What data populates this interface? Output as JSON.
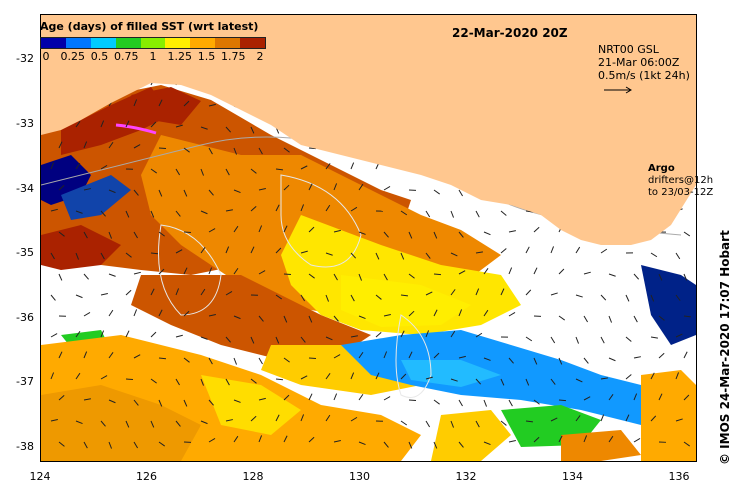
{
  "title": "22-Mar-2020 20Z",
  "legend": {
    "title": "Age (days) of filled SST (wrt latest)",
    "tick_labels": [
      "0",
      "0.25",
      "0.5",
      "0.75",
      "1",
      "1.25",
      "1.5",
      "1.75",
      "2"
    ],
    "colors": [
      "#0000aa",
      "#0077ff",
      "#00ccff",
      "#22cc22",
      "#88ee00",
      "#ffee00",
      "#ffaa00",
      "#dd7700",
      "#aa2200"
    ]
  },
  "model": {
    "line1": "NRT00 GSL",
    "line2": "21-Mar 06:00Z",
    "line3": "0.5m/s (1kt 24h)"
  },
  "argo": {
    "label": "Argo",
    "line2": "drifters@12h",
    "line3": "to 23/03-12Z"
  },
  "credit": "© IMOS 24-Mar-2020 17:07 Hobart",
  "colors": {
    "land": "#ffc78f",
    "no_data": "#ffffff",
    "argo": "#ff44ff",
    "contour": "#c8c8c8"
  },
  "chart_data": {
    "type": "map",
    "x_ticks": [
      "124",
      "126",
      "128",
      "130",
      "132",
      "134",
      "136"
    ],
    "y_ticks": [
      "-32",
      "-33",
      "-34",
      "-35",
      "-36",
      "-37",
      "-38"
    ],
    "xlim": [
      124,
      136.3
    ],
    "ylim": [
      -38.2,
      -31.3
    ]
  }
}
